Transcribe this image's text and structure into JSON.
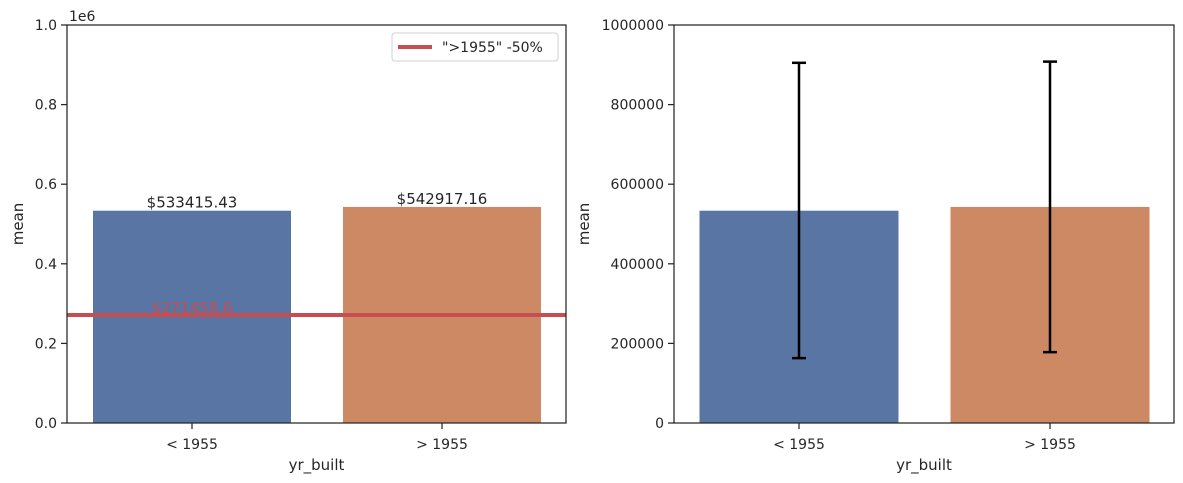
{
  "chart_data": [
    {
      "type": "bar",
      "categories": [
        "< 1955",
        "> 1955"
      ],
      "values": [
        533415.43,
        542917.16
      ],
      "colors": [
        "#5875a4",
        "#cc8963"
      ],
      "xlabel": "yr_built",
      "ylabel": "mean",
      "ylim": [
        0,
        1000000
      ],
      "y_offset_text": "1e6",
      "y_ticks": [
        "0.0",
        "0.2",
        "0.4",
        "0.6",
        "0.8",
        "1.0"
      ],
      "y_tick_values": [
        0,
        200000,
        400000,
        600000,
        800000,
        1000000
      ],
      "bar_labels": [
        "$533415.43",
        "$542917.16"
      ],
      "reference_line": {
        "value": 271458.6,
        "label": "$271458.6",
        "legend": "\">1955\" -50%",
        "color": "#c44e52"
      },
      "grid": false
    },
    {
      "type": "bar",
      "categories": [
        "< 1955",
        "> 1955"
      ],
      "values": [
        533415.43,
        542917.16
      ],
      "colors": [
        "#5875a4",
        "#cc8963"
      ],
      "xlabel": "yr_built",
      "ylabel": "mean",
      "ylim": [
        0,
        1000000
      ],
      "y_ticks": [
        "0",
        "200000",
        "400000",
        "600000",
        "800000",
        "1000000"
      ],
      "y_tick_values": [
        0,
        200000,
        400000,
        600000,
        800000,
        1000000
      ],
      "error_bars": [
        {
          "low": 163000,
          "high": 905000
        },
        {
          "low": 178000,
          "high": 908000
        }
      ],
      "grid": false
    }
  ]
}
